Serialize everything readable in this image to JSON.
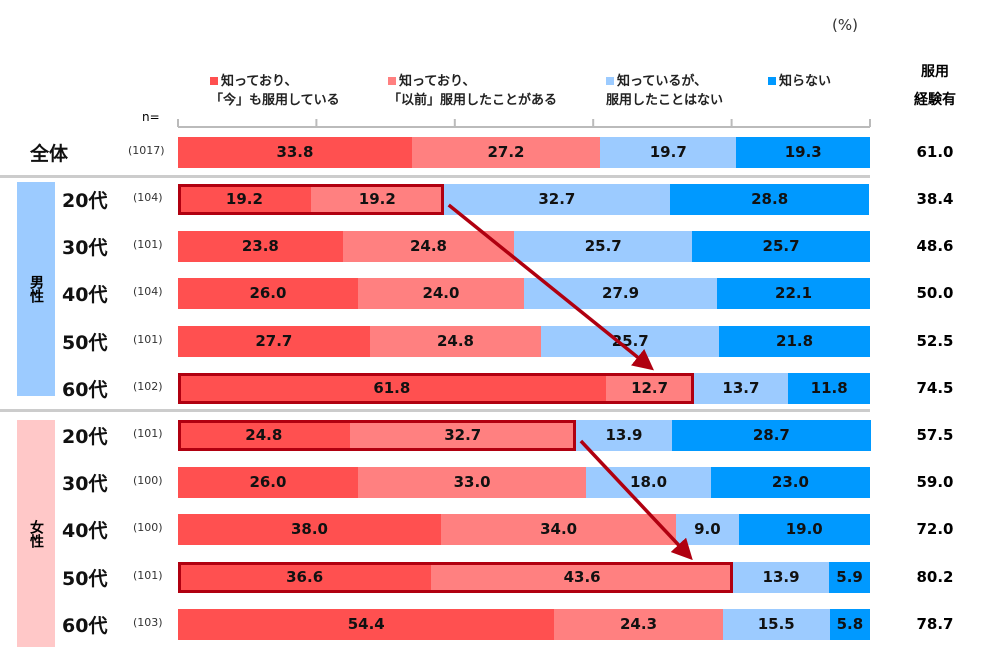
{
  "chart_data": {
    "type": "bar",
    "orientation": "horizontal-stacked-100",
    "unit_label": "(%)",
    "n_label": "n=",
    "total_header": "服用\n経験有",
    "series": [
      {
        "name": "知っており、\n「今」も服用している",
        "color": "#ff5050"
      },
      {
        "name": "知っており、\n「以前」服用したことがある",
        "color": "#ff8080"
      },
      {
        "name": "知っているが、\n服用したことはない",
        "color": "#9ccbff"
      },
      {
        "name": "知らない",
        "color": "#0099ff"
      }
    ],
    "xlim": [
      0,
      100
    ],
    "rows": [
      {
        "group": "",
        "label": "全体",
        "n": "(1017)",
        "values": [
          33.8,
          27.2,
          19.7,
          19.3
        ],
        "total": "61.0",
        "highlight": false
      },
      {
        "group": "男性",
        "label": "20代",
        "n": "(104)",
        "values": [
          19.2,
          19.2,
          32.7,
          28.8
        ],
        "total": "38.4",
        "highlight": true
      },
      {
        "group": "男性",
        "label": "30代",
        "n": "(101)",
        "values": [
          23.8,
          24.8,
          25.7,
          25.7
        ],
        "total": "48.6",
        "highlight": false
      },
      {
        "group": "男性",
        "label": "40代",
        "n": "(104)",
        "values": [
          26.0,
          24.0,
          27.9,
          22.1
        ],
        "total": "50.0",
        "highlight": false
      },
      {
        "group": "男性",
        "label": "50代",
        "n": "(101)",
        "values": [
          27.7,
          24.8,
          25.7,
          21.8
        ],
        "total": "52.5",
        "highlight": false
      },
      {
        "group": "男性",
        "label": "60代",
        "n": "(102)",
        "values": [
          61.8,
          12.7,
          13.7,
          11.8
        ],
        "total": "74.5",
        "highlight": true
      },
      {
        "group": "女性",
        "label": "20代",
        "n": "(101)",
        "values": [
          24.8,
          32.7,
          13.9,
          28.7
        ],
        "total": "57.5",
        "highlight": true
      },
      {
        "group": "女性",
        "label": "30代",
        "n": "(100)",
        "values": [
          26.0,
          33.0,
          18.0,
          23.0
        ],
        "total": "59.0",
        "highlight": false
      },
      {
        "group": "女性",
        "label": "40代",
        "n": "(100)",
        "values": [
          38.0,
          34.0,
          9.0,
          19.0
        ],
        "total": "72.0",
        "highlight": false
      },
      {
        "group": "女性",
        "label": "50代",
        "n": "(101)",
        "values": [
          36.6,
          43.6,
          13.9,
          5.9
        ],
        "total": "80.2",
        "highlight": true
      },
      {
        "group": "女性",
        "label": "60代",
        "n": "(103)",
        "values": [
          54.4,
          24.3,
          15.5,
          5.8
        ],
        "total": "78.7",
        "highlight": false
      }
    ],
    "groups": [
      {
        "name": "男性",
        "color": "#9ccbff"
      },
      {
        "name": "女性",
        "color": "#ffc8c8"
      }
    ],
    "annotations": [
      {
        "type": "arrow",
        "from_row": "男性20代",
        "to_row": "男性60代"
      },
      {
        "type": "arrow",
        "from_row": "女性20代",
        "to_row": "女性50代"
      }
    ],
    "highlight_color": "#b00010"
  }
}
